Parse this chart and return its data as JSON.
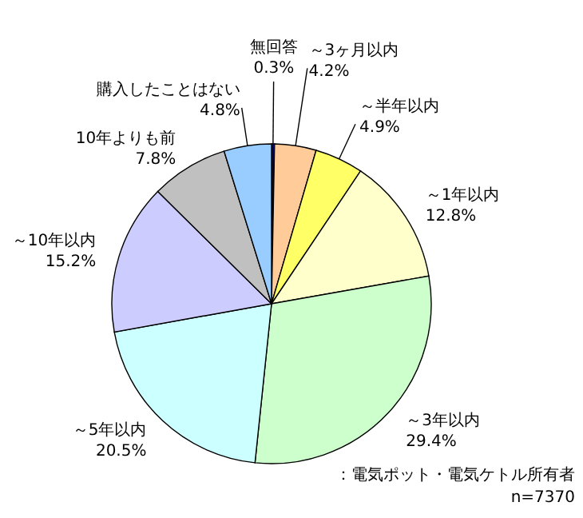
{
  "chart_data": {
    "type": "pie",
    "categories": [
      "無回答",
      "～3ヶ月以内",
      "～半年以内",
      "～1年以内",
      "～3年以内",
      "～5年以内",
      "～10年以内",
      "10年よりも前",
      "購入したことはない"
    ],
    "values": [
      0.3,
      4.2,
      4.9,
      12.8,
      29.4,
      20.5,
      15.2,
      7.8,
      4.8
    ],
    "value_labels": [
      "0.3%",
      "4.2%",
      "4.9%",
      "12.8%",
      "29.4%",
      "20.5%",
      "15.2%",
      "7.8%",
      "4.8%"
    ],
    "colors": [
      "#000080",
      "#ffcc99",
      "#ffff66",
      "#ffffcc",
      "#ccffcc",
      "#ccffff",
      "#ccccff",
      "#c0c0c0",
      "#99ccff"
    ],
    "annotations": [
      "：電気ポット・電気ケトル所有者",
      "n=7370"
    ]
  }
}
